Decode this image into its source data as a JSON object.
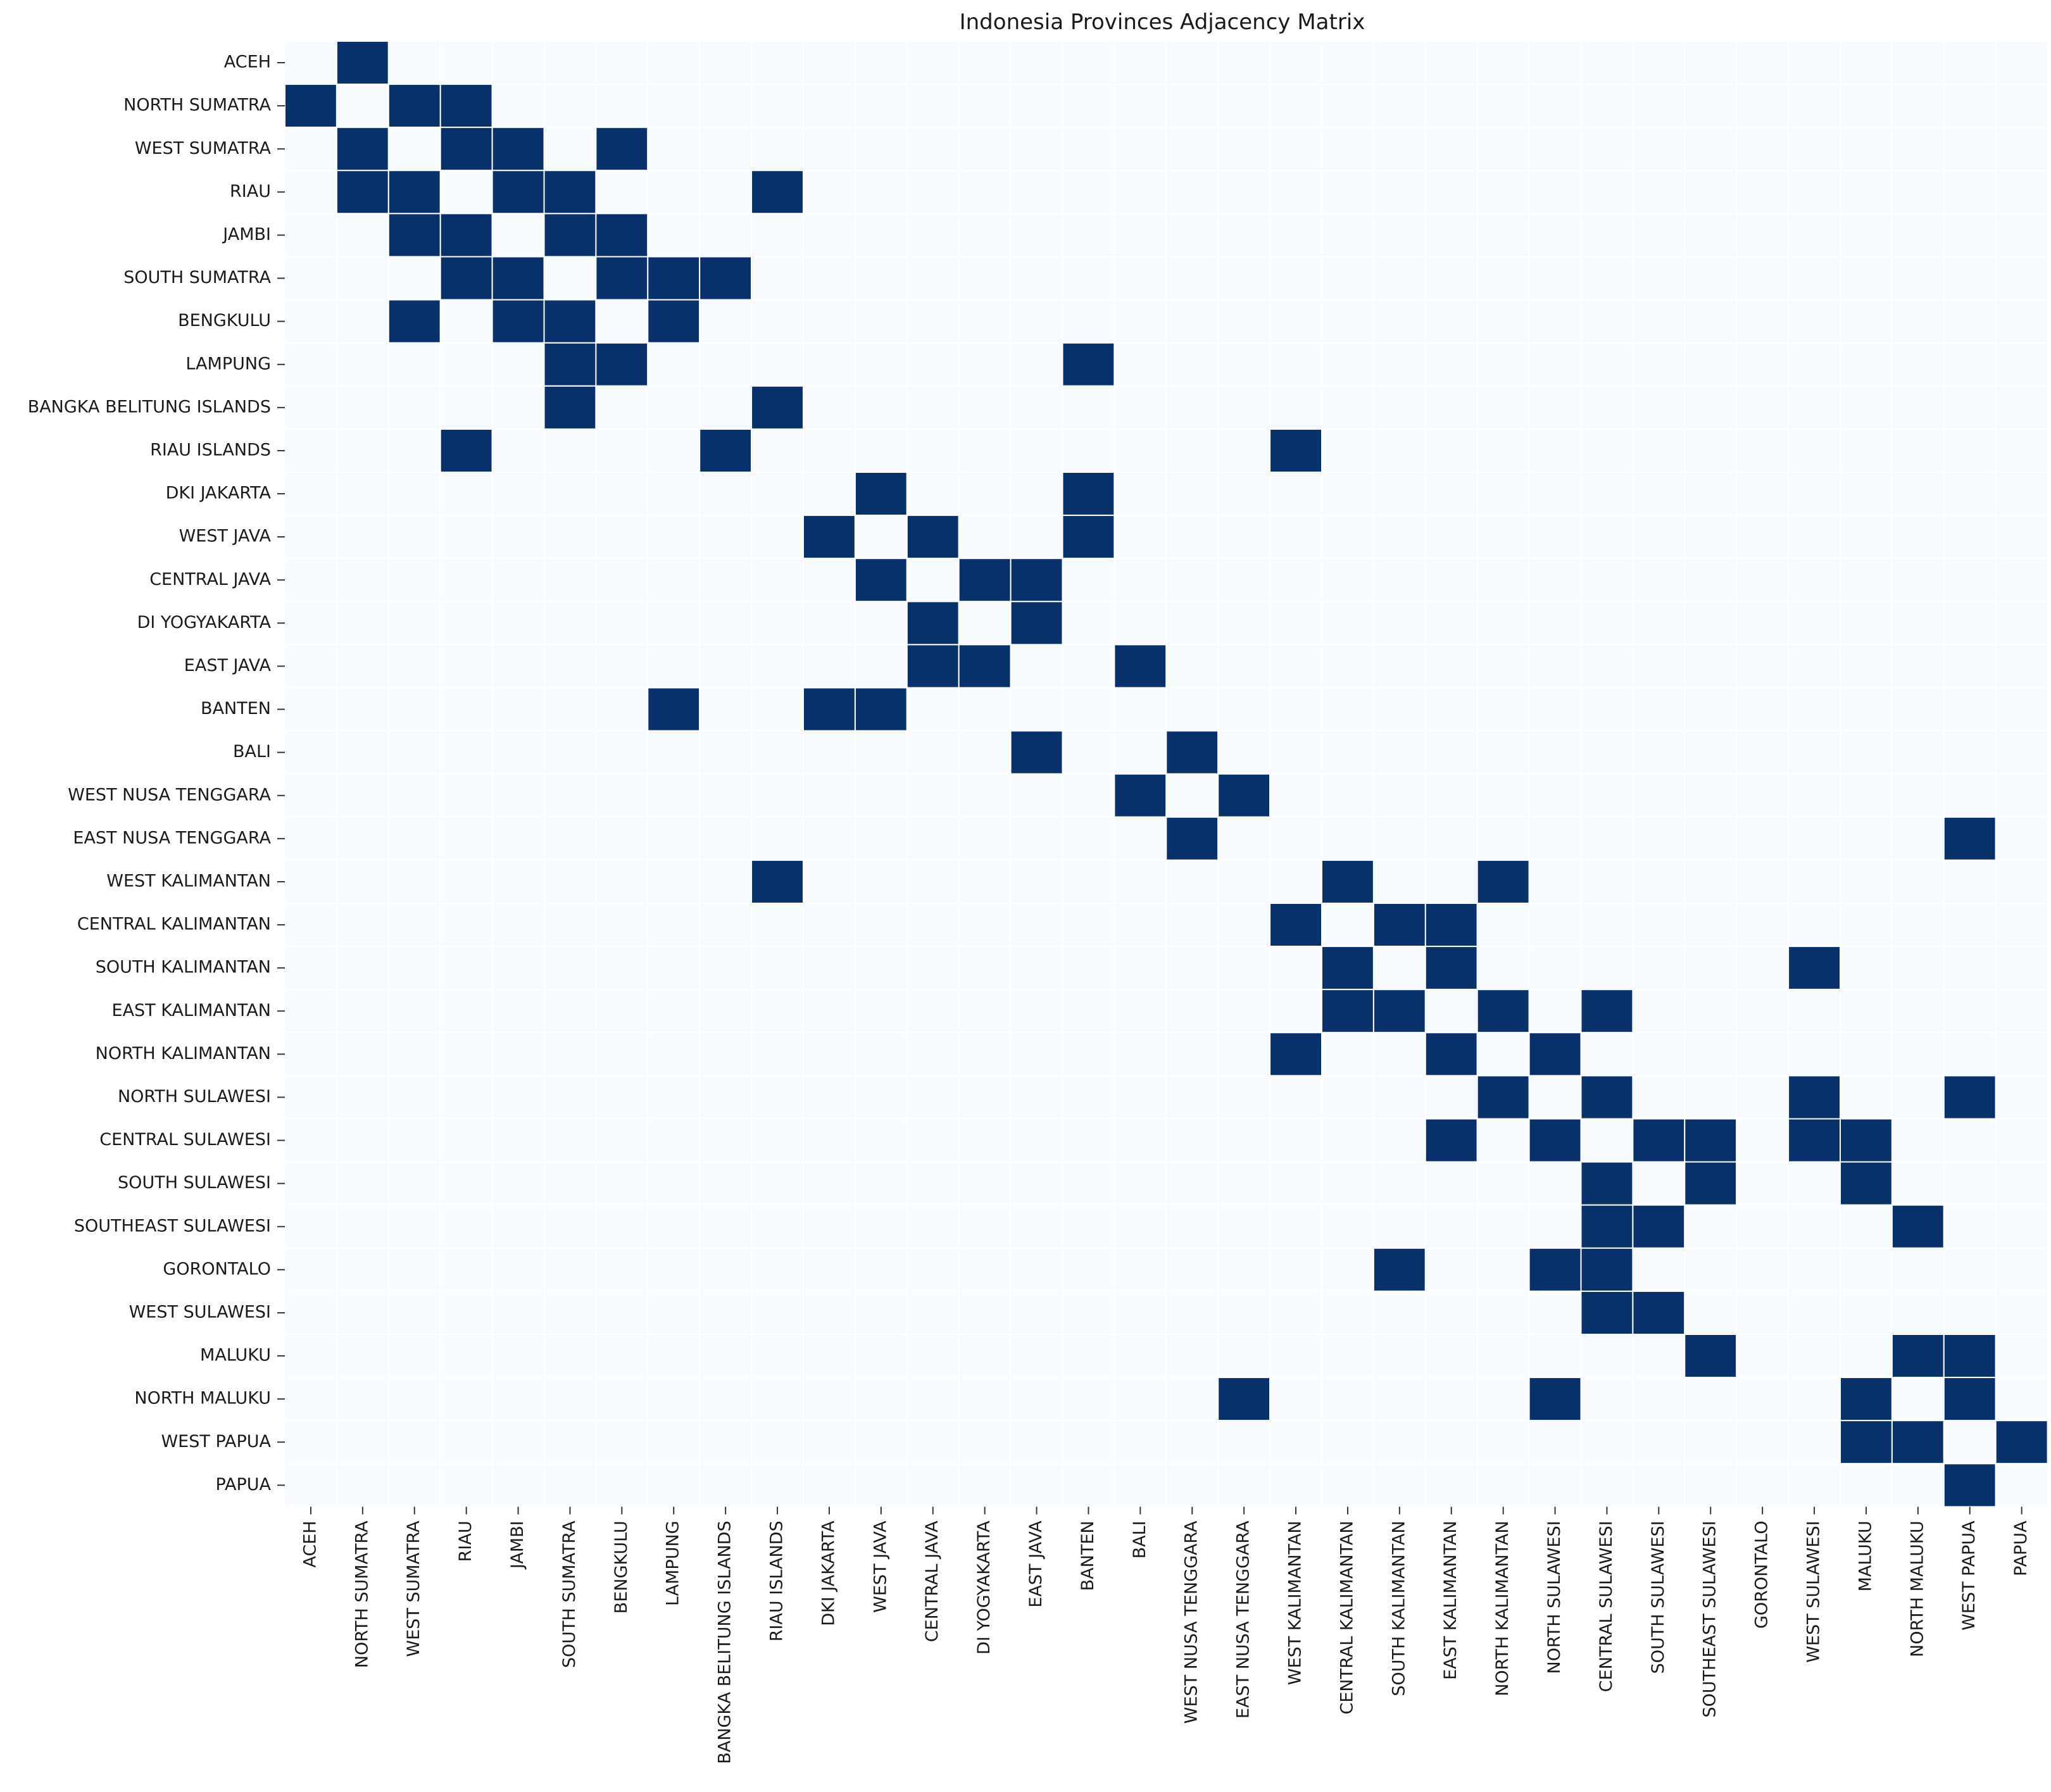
{
  "chart_data": {
    "type": "heatmap",
    "title": "Indonesia Provinces Adjacency Matrix",
    "xlabel": "",
    "ylabel": "",
    "colors": {
      "one": "#08306b",
      "zero": "#f7fbff",
      "gridline": "#ffffff"
    },
    "legend": "none",
    "grid": false,
    "labels": [
      "ACEH",
      "NORTH SUMATRA",
      "WEST SUMATRA",
      "RIAU",
      "JAMBI",
      "SOUTH SUMATRA",
      "BENGKULU",
      "LAMPUNG",
      "BANGKA BELITUNG ISLANDS",
      "RIAU ISLANDS",
      "DKI JAKARTA",
      "WEST JAVA",
      "CENTRAL JAVA",
      "DI YOGYAKARTA",
      "EAST JAVA",
      "BANTEN",
      "BALI",
      "WEST NUSA TENGGARA",
      "EAST NUSA TENGGARA",
      "WEST KALIMANTAN",
      "CENTRAL KALIMANTAN",
      "SOUTH KALIMANTAN",
      "EAST KALIMANTAN",
      "NORTH KALIMANTAN",
      "NORTH SULAWESI",
      "CENTRAL SULAWESI",
      "SOUTH SULAWESI",
      "SOUTHEAST SULAWESI",
      "GORONTALO",
      "WEST SULAWESI",
      "MALUKU",
      "NORTH MALUKU",
      "WEST PAPUA",
      "PAPUA"
    ],
    "adjacent_cells": [
      [
        0,
        1
      ],
      [
        1,
        0
      ],
      [
        1,
        2
      ],
      [
        1,
        3
      ],
      [
        2,
        1
      ],
      [
        2,
        3
      ],
      [
        2,
        4
      ],
      [
        2,
        6
      ],
      [
        3,
        1
      ],
      [
        3,
        2
      ],
      [
        3,
        4
      ],
      [
        3,
        5
      ],
      [
        3,
        9
      ],
      [
        4,
        2
      ],
      [
        4,
        3
      ],
      [
        4,
        5
      ],
      [
        4,
        6
      ],
      [
        5,
        3
      ],
      [
        5,
        4
      ],
      [
        5,
        6
      ],
      [
        5,
        7
      ],
      [
        5,
        8
      ],
      [
        6,
        2
      ],
      [
        6,
        4
      ],
      [
        6,
        5
      ],
      [
        6,
        7
      ],
      [
        7,
        5
      ],
      [
        7,
        6
      ],
      [
        7,
        15
      ],
      [
        8,
        5
      ],
      [
        8,
        9
      ],
      [
        9,
        3
      ],
      [
        9,
        8
      ],
      [
        9,
        19
      ],
      [
        10,
        11
      ],
      [
        10,
        15
      ],
      [
        11,
        10
      ],
      [
        11,
        12
      ],
      [
        11,
        15
      ],
      [
        12,
        11
      ],
      [
        12,
        13
      ],
      [
        12,
        14
      ],
      [
        13,
        12
      ],
      [
        13,
        14
      ],
      [
        14,
        12
      ],
      [
        14,
        13
      ],
      [
        14,
        16
      ],
      [
        15,
        7
      ],
      [
        15,
        10
      ],
      [
        15,
        11
      ],
      [
        16,
        14
      ],
      [
        16,
        17
      ],
      [
        17,
        16
      ],
      [
        17,
        18
      ],
      [
        18,
        17
      ],
      [
        18,
        32
      ],
      [
        19,
        9
      ],
      [
        19,
        20
      ],
      [
        19,
        23
      ],
      [
        20,
        19
      ],
      [
        20,
        21
      ],
      [
        20,
        22
      ],
      [
        21,
        20
      ],
      [
        21,
        22
      ],
      [
        21,
        29
      ],
      [
        22,
        20
      ],
      [
        22,
        21
      ],
      [
        22,
        23
      ],
      [
        22,
        25
      ],
      [
        23,
        19
      ],
      [
        23,
        22
      ],
      [
        23,
        24
      ],
      [
        24,
        23
      ],
      [
        24,
        25
      ],
      [
        24,
        29
      ],
      [
        24,
        32
      ],
      [
        25,
        22
      ],
      [
        25,
        24
      ],
      [
        25,
        26
      ],
      [
        25,
        27
      ],
      [
        25,
        29
      ],
      [
        25,
        30
      ],
      [
        26,
        25
      ],
      [
        26,
        27
      ],
      [
        26,
        30
      ],
      [
        27,
        25
      ],
      [
        27,
        26
      ],
      [
        27,
        31
      ],
      [
        28,
        21
      ],
      [
        28,
        24
      ],
      [
        28,
        25
      ],
      [
        29,
        25
      ],
      [
        29,
        26
      ],
      [
        30,
        27
      ],
      [
        30,
        31
      ],
      [
        30,
        32
      ],
      [
        31,
        18
      ],
      [
        31,
        24
      ],
      [
        31,
        30
      ],
      [
        31,
        32
      ],
      [
        32,
        30
      ],
      [
        32,
        31
      ],
      [
        32,
        33
      ],
      [
        33,
        32
      ]
    ]
  }
}
